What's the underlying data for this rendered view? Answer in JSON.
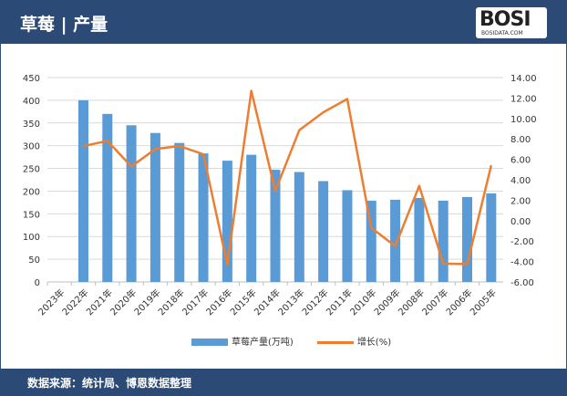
{
  "header": {
    "title": "草莓 | 产量",
    "logo_text": "BOSI",
    "logo_sub": "BOSIDATA.COM"
  },
  "footer": {
    "source": "数据来源：统计局、博恩数据整理"
  },
  "colors": {
    "bar": "#5b9bd5",
    "line": "#ed7d31",
    "header": "#2c4a76"
  },
  "chart_data": {
    "type": "bar+line",
    "categories": [
      "2023年",
      "2022年",
      "2021年",
      "2020年",
      "2019年",
      "2018年",
      "2017年",
      "2016年",
      "2015年",
      "2014年",
      "2013年",
      "2012年",
      "2011年",
      "2010年",
      "2009年",
      "2008年",
      "2007年",
      "2006年",
      "2005年"
    ],
    "series": [
      {
        "name": "草莓产量(万吨)",
        "type": "bar",
        "axis": "left",
        "values": [
          null,
          400,
          370,
          345,
          328,
          306,
          283,
          267,
          280,
          247,
          242,
          222,
          202,
          179,
          181,
          185,
          179,
          187,
          195
        ]
      },
      {
        "name": "增长(%)",
        "type": "line",
        "axis": "right",
        "values": [
          null,
          7.3,
          7.8,
          5.3,
          7.0,
          7.3,
          6.5,
          -4.3,
          12.7,
          2.9,
          8.85,
          10.6,
          11.9,
          -0.7,
          -2.5,
          3.4,
          -4.2,
          -4.25,
          5.4
        ]
      }
    ],
    "left_axis": {
      "min": 0,
      "max": 450,
      "step": 50,
      "ticks": [
        "0",
        "50",
        "100",
        "150",
        "200",
        "250",
        "300",
        "350",
        "400",
        "450"
      ]
    },
    "right_axis": {
      "min": -6,
      "max": 14,
      "step": 2,
      "ticks": [
        "-6.00",
        "-4.00",
        "-2.00",
        "0.00",
        "2.00",
        "4.00",
        "6.00",
        "8.00",
        "10.00",
        "12.00",
        "14.00"
      ]
    },
    "grid": true,
    "legend": "bottom"
  }
}
